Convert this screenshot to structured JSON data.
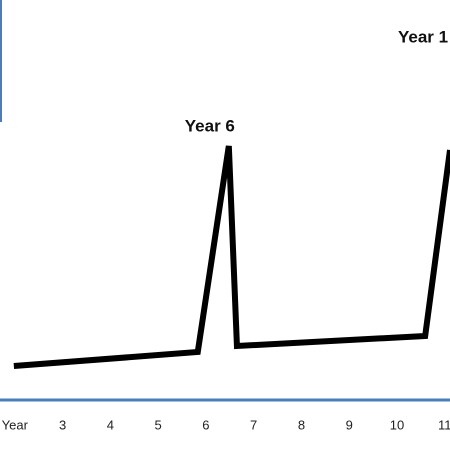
{
  "chart_data": {
    "type": "line",
    "annotations": [
      {
        "text": "Year 6",
        "x": 6.48
      },
      {
        "text": "Year 1",
        "x": 11.11
      }
    ],
    "series": [
      {
        "color": "#000000",
        "x": [
          1.98,
          5.83,
          6.48,
          6.65,
          10.59,
          11.11
        ],
        "values": [
          8.5,
          12,
          63.5,
          13.5,
          16,
          62.5
        ]
      }
    ],
    "xlim": [
      1.69,
      11.11
    ],
    "xticks": [
      {
        "value": 2,
        "label": "Year"
      },
      3,
      4,
      5,
      6,
      7,
      8,
      9,
      10,
      11
    ],
    "ylim": [
      0,
      100
    ],
    "axis_color": "#4a7ebb"
  }
}
